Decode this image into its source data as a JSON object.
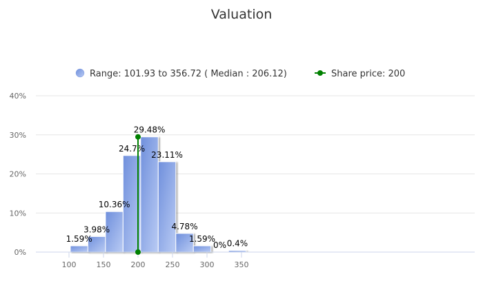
{
  "chart_data": {
    "type": "bar",
    "title": "Valuation",
    "legend_position": "top-center",
    "series": [
      {
        "name": "Range: 101.93 to 356.72 ( Median : 206.12)",
        "color": "#7f9be0",
        "bins": [
          {
            "start": 101.93,
            "end": 127.41,
            "value": 1.59,
            "label": "1.59%"
          },
          {
            "start": 127.41,
            "end": 152.89,
            "value": 3.98,
            "label": "3.98%"
          },
          {
            "start": 152.89,
            "end": 178.36,
            "value": 10.36,
            "label": "10.36%"
          },
          {
            "start": 178.36,
            "end": 203.84,
            "value": 24.7,
            "label": "24.7%"
          },
          {
            "start": 203.84,
            "end": 229.32,
            "value": 29.48,
            "label": "29.48%"
          },
          {
            "start": 229.32,
            "end": 254.8,
            "value": 23.11,
            "label": "23.11%"
          },
          {
            "start": 254.8,
            "end": 280.28,
            "value": 4.78,
            "label": "4.78%"
          },
          {
            "start": 280.28,
            "end": 305.76,
            "value": 1.59,
            "label": "1.59%"
          },
          {
            "start": 305.76,
            "end": 331.24,
            "value": 0,
            "label": "0%"
          },
          {
            "start": 331.24,
            "end": 356.72,
            "value": 0.4,
            "label": "0.4%"
          }
        ]
      },
      {
        "name": "Share price: 200",
        "color": "#008000",
        "x": 200,
        "y_range": [
          0,
          29.48
        ]
      }
    ],
    "xlim": [
      52,
      688
    ],
    "ylim": [
      0,
      40
    ],
    "x_ticks": [
      100,
      150,
      200,
      250,
      300,
      350
    ],
    "y_ticks": [
      "0%",
      "10%",
      "20%",
      "30%",
      "40%"
    ],
    "y_tick_values": [
      0,
      10,
      20,
      30,
      40
    ],
    "grid": true
  }
}
